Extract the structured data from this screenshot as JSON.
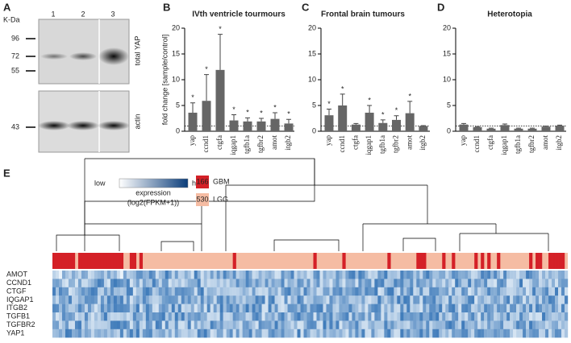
{
  "panels": [
    "A",
    "B",
    "C",
    "D",
    "E"
  ],
  "blot": {
    "unit": "K-Da",
    "lanes": [
      "1",
      "2",
      "3"
    ],
    "markers": [
      "96",
      "72",
      "55"
    ],
    "label": "total YAP",
    "loading_marker": "43",
    "loading_label": "actin"
  },
  "chart_data": [
    {
      "type": "bar",
      "title": "IVth ventricle tourmours",
      "ylabel": "fold change [sample/control]",
      "categories": [
        "yap",
        "ccnd1",
        "ctgfa",
        "iqgap1",
        "tgfb1a",
        "tgfbr2",
        "amot",
        "itgb2"
      ],
      "values": [
        3.6,
        5.9,
        11.9,
        2.1,
        1.9,
        1.9,
        2.4,
        1.5
      ],
      "errors": [
        1.9,
        5.1,
        6.9,
        1.1,
        0.7,
        0.6,
        1.2,
        0.8
      ],
      "significance": [
        "*",
        "*",
        "*",
        "*",
        "*",
        "*",
        "*",
        "*"
      ],
      "color": "#666666",
      "ylim": [
        0,
        20
      ],
      "yticks": [
        0,
        5,
        10,
        15,
        20
      ],
      "reference_line": 1
    },
    {
      "type": "bar",
      "title": "Frontal brain tumours",
      "categories": [
        "yap",
        "ccnd1",
        "ctgfa",
        "iqgap1",
        "tgfb1a",
        "tgfbr2",
        "amot",
        "itgb2"
      ],
      "values": [
        3.1,
        5.0,
        1.3,
        3.6,
        1.6,
        2.2,
        3.5,
        1.0
      ],
      "errors": [
        1.2,
        2.2,
        0.2,
        1.4,
        0.6,
        0.8,
        2.3,
        0.1
      ],
      "significance": [
        "*",
        "*",
        null,
        "*",
        "*",
        "*",
        "*",
        null
      ],
      "color": "#666666",
      "ylim": [
        0,
        20
      ],
      "yticks": [
        0,
        5,
        10,
        15,
        20
      ],
      "reference_line": 1
    },
    {
      "type": "bar",
      "title": "Heterotopia",
      "categories": [
        "yap",
        "ccnd1",
        "ctgfa",
        "iqgap1",
        "tgfb1a",
        "tgfbr2",
        "amot",
        "itgb2"
      ],
      "values": [
        1.3,
        0.8,
        0.5,
        1.2,
        0.5,
        0.5,
        0.9,
        1.1
      ],
      "errors": [
        0.2,
        0.1,
        0.1,
        0.2,
        0.1,
        0.1,
        0.1,
        0.1
      ],
      "significance": [
        null,
        null,
        null,
        null,
        null,
        null,
        null,
        null
      ],
      "color": "#666666",
      "ylim": [
        0,
        20
      ],
      "yticks": [
        0,
        5,
        10,
        15,
        20
      ],
      "reference_line": 1
    }
  ],
  "heatmap": {
    "legend": {
      "low": "low",
      "high": "high",
      "label": "expression",
      "scale": "(log2(FPKM+1))"
    },
    "groups": [
      {
        "count": 166,
        "name": "GBM",
        "color": "#d42027"
      },
      {
        "count": 530,
        "name": "LGG",
        "color": "#f5bca3"
      }
    ],
    "genes": [
      "AMOT",
      "CCND1",
      "CTGF",
      "IQGAP1",
      "ITGB2",
      "TGFB1",
      "TGFBR2",
      "YAP1"
    ]
  }
}
